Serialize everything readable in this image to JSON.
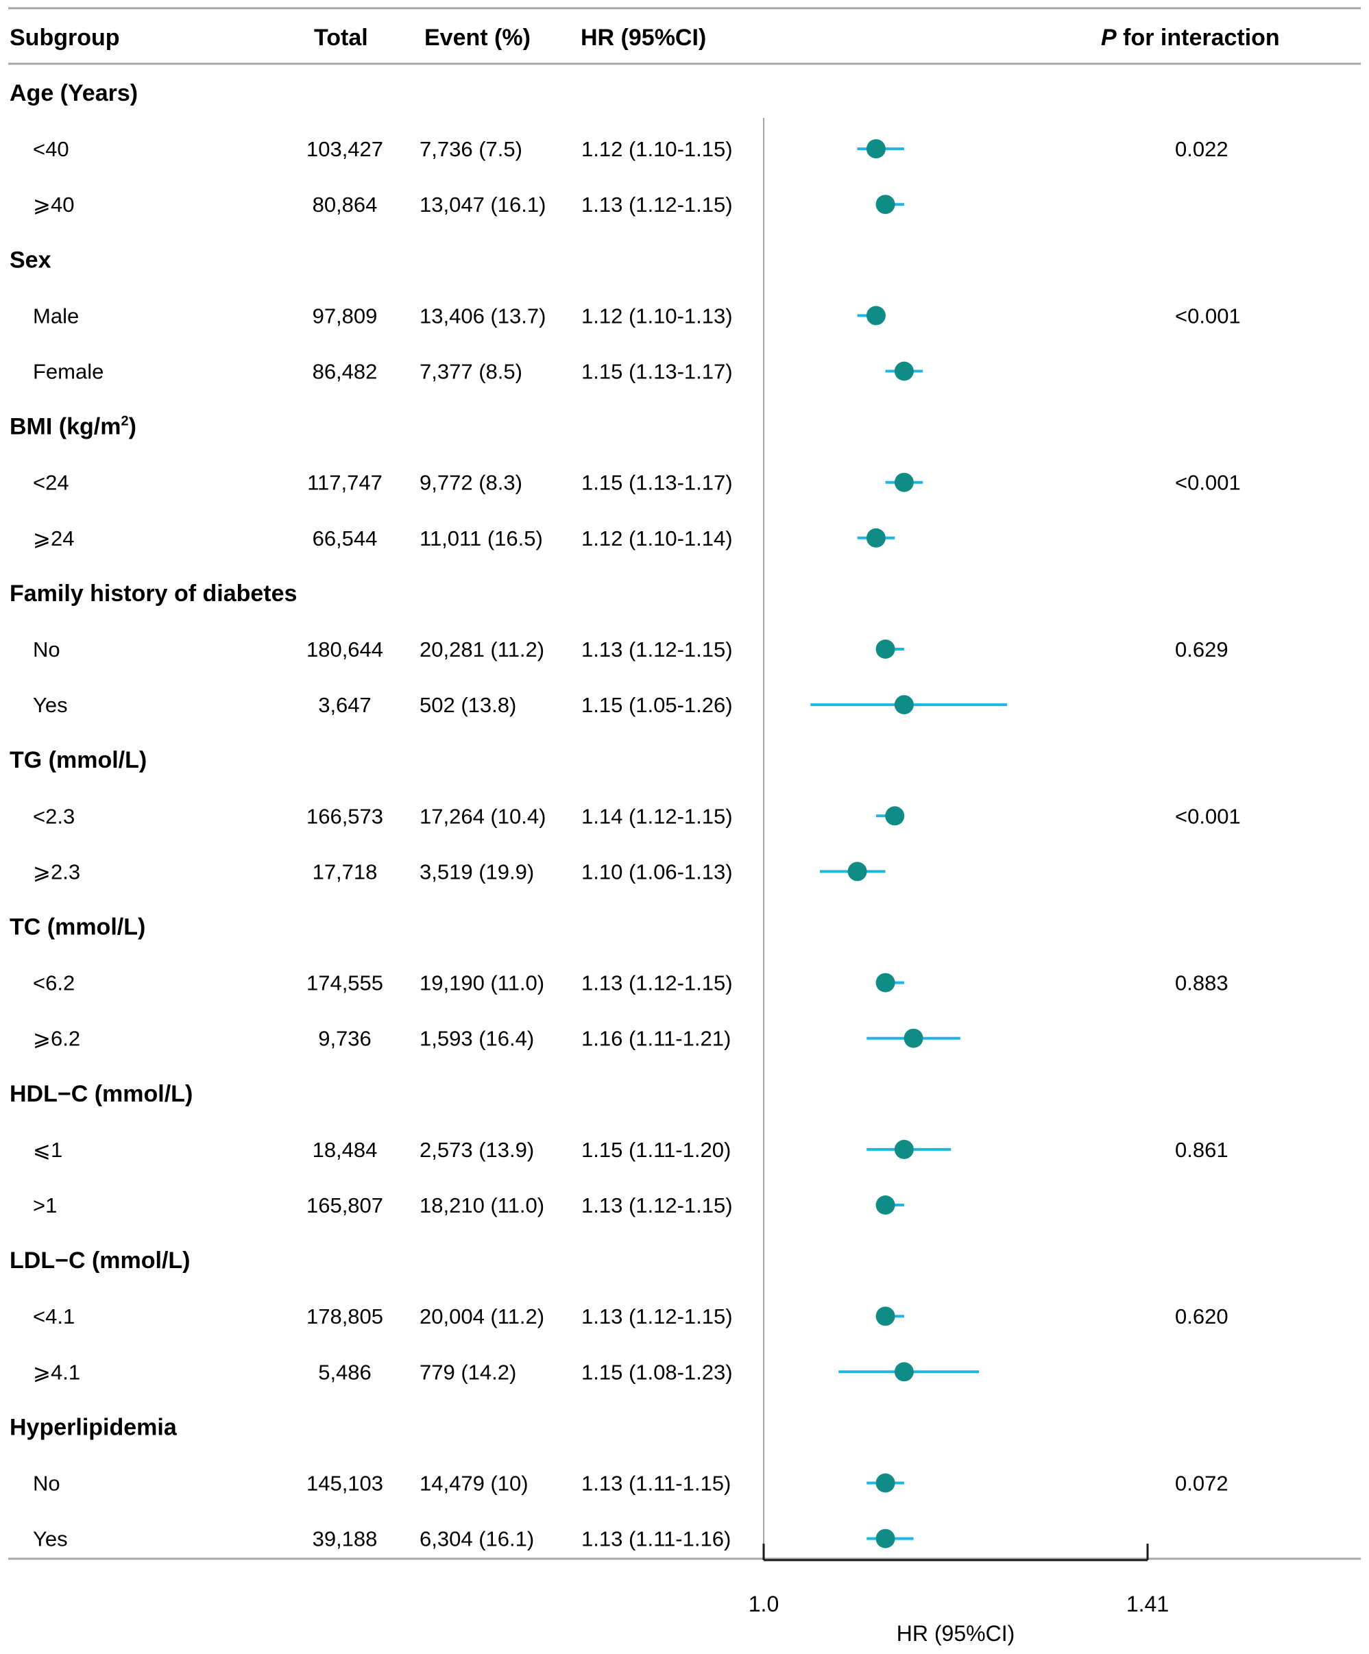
{
  "chart_data": {
    "type": "forest",
    "headers": {
      "subgroup": "Subgroup",
      "total": "Total",
      "event": "Event (%)",
      "hr": "HR (95%CI)",
      "p_italic": "P",
      "p_rest": " for interaction"
    },
    "xlabel": "HR (95%CI)",
    "x_ticks": [
      {
        "value": 1.0,
        "label": "1.0"
      },
      {
        "value": 1.41,
        "label": "1.41"
      }
    ],
    "xlim": [
      1.0,
      1.41
    ],
    "reference_line": 1.0,
    "rows": [
      {
        "type": "group",
        "label": "Age (Years)"
      },
      {
        "type": "item",
        "label": "<40",
        "total": "103,427",
        "event": "7,736 (7.5)",
        "hr_text": "1.12 (1.10-1.15)",
        "hr": 1.12,
        "lo": 1.1,
        "hi": 1.15,
        "p": "0.022"
      },
      {
        "type": "item",
        "label": "⩾40",
        "total": "80,864",
        "event": "13,047 (16.1)",
        "hr_text": "1.13 (1.12-1.15)",
        "hr": 1.13,
        "lo": 1.12,
        "hi": 1.15,
        "p": ""
      },
      {
        "type": "group",
        "label": "Sex"
      },
      {
        "type": "item",
        "label": "Male",
        "total": "97,809",
        "event": "13,406 (13.7)",
        "hr_text": "1.12 (1.10-1.13)",
        "hr": 1.12,
        "lo": 1.1,
        "hi": 1.13,
        "p": "<0.001"
      },
      {
        "type": "item",
        "label": "Female",
        "total": "86,482",
        "event": "7,377 (8.5)",
        "hr_text": "1.15 (1.13-1.17)",
        "hr": 1.15,
        "lo": 1.13,
        "hi": 1.17,
        "p": ""
      },
      {
        "type": "group",
        "label": "BMI (kg/m",
        "sup": "2",
        "after": ")"
      },
      {
        "type": "item",
        "label": "<24",
        "total": "117,747",
        "event": "9,772 (8.3)",
        "hr_text": "1.15 (1.13-1.17)",
        "hr": 1.15,
        "lo": 1.13,
        "hi": 1.17,
        "p": "<0.001"
      },
      {
        "type": "item",
        "label": "⩾24",
        "total": "66,544",
        "event": "11,011 (16.5)",
        "hr_text": "1.12 (1.10-1.14)",
        "hr": 1.12,
        "lo": 1.1,
        "hi": 1.14,
        "p": ""
      },
      {
        "type": "group",
        "label": "Family history of diabetes"
      },
      {
        "type": "item",
        "label": "No",
        "total": "180,644",
        "event": "20,281 (11.2)",
        "hr_text": "1.13 (1.12-1.15)",
        "hr": 1.13,
        "lo": 1.12,
        "hi": 1.15,
        "p": "0.629"
      },
      {
        "type": "item",
        "label": "Yes",
        "total": "3,647",
        "event": "502 (13.8)",
        "hr_text": "1.15 (1.05-1.26)",
        "hr": 1.15,
        "lo": 1.05,
        "hi": 1.26,
        "p": ""
      },
      {
        "type": "group",
        "label": "TG (mmol/L)"
      },
      {
        "type": "item",
        "label": "<2.3",
        "total": "166,573",
        "event": "17,264 (10.4)",
        "hr_text": "1.14 (1.12-1.15)",
        "hr": 1.14,
        "lo": 1.12,
        "hi": 1.15,
        "p": "<0.001"
      },
      {
        "type": "item",
        "label": "⩾2.3",
        "total": "17,718",
        "event": "3,519 (19.9)",
        "hr_text": "1.10 (1.06-1.13)",
        "hr": 1.1,
        "lo": 1.06,
        "hi": 1.13,
        "p": ""
      },
      {
        "type": "group",
        "label": "TC (mmol/L)"
      },
      {
        "type": "item",
        "label": "<6.2",
        "total": "174,555",
        "event": "19,190 (11.0)",
        "hr_text": "1.13 (1.12-1.15)",
        "hr": 1.13,
        "lo": 1.12,
        "hi": 1.15,
        "p": "0.883"
      },
      {
        "type": "item",
        "label": "⩾6.2",
        "total": "9,736",
        "event": "1,593 (16.4)",
        "hr_text": "1.16 (1.11-1.21)",
        "hr": 1.16,
        "lo": 1.11,
        "hi": 1.21,
        "p": ""
      },
      {
        "type": "group",
        "label": "HDL−C (mmol/L)"
      },
      {
        "type": "item",
        "label": "⩽1",
        "total": "18,484",
        "event": "2,573 (13.9)",
        "hr_text": "1.15 (1.11-1.20)",
        "hr": 1.15,
        "lo": 1.11,
        "hi": 1.2,
        "p": "0.861"
      },
      {
        "type": "item",
        "label": ">1",
        "total": "165,807",
        "event": "18,210 (11.0)",
        "hr_text": "1.13 (1.12-1.15)",
        "hr": 1.13,
        "lo": 1.12,
        "hi": 1.15,
        "p": ""
      },
      {
        "type": "group",
        "label": "LDL−C (mmol/L)"
      },
      {
        "type": "item",
        "label": "<4.1",
        "total": "178,805",
        "event": "20,004 (11.2)",
        "hr_text": "1.13 (1.12-1.15)",
        "hr": 1.13,
        "lo": 1.12,
        "hi": 1.15,
        "p": "0.620"
      },
      {
        "type": "item",
        "label": "⩾4.1",
        "total": "5,486",
        "event": "779 (14.2)",
        "hr_text": "1.15 (1.08-1.23)",
        "hr": 1.15,
        "lo": 1.08,
        "hi": 1.23,
        "p": ""
      },
      {
        "type": "group",
        "label": "Hyperlipidemia"
      },
      {
        "type": "item",
        "label": "No",
        "total": "145,103",
        "event": "14,479 (10)",
        "hr_text": "1.13 (1.11-1.15)",
        "hr": 1.13,
        "lo": 1.11,
        "hi": 1.15,
        "p": "0.072"
      },
      {
        "type": "item",
        "label": "Yes",
        "total": "39,188",
        "event": "6,304 (16.1)",
        "hr_text": "1.13 (1.11-1.16)",
        "hr": 1.13,
        "lo": 1.11,
        "hi": 1.16,
        "p": ""
      }
    ]
  },
  "colors": {
    "ci_line": "#1bb7e0",
    "point": "#0f8c85",
    "rule": "#a6a6a6",
    "ref_line": "#a6a6a6",
    "text": "#1a1a1a"
  }
}
